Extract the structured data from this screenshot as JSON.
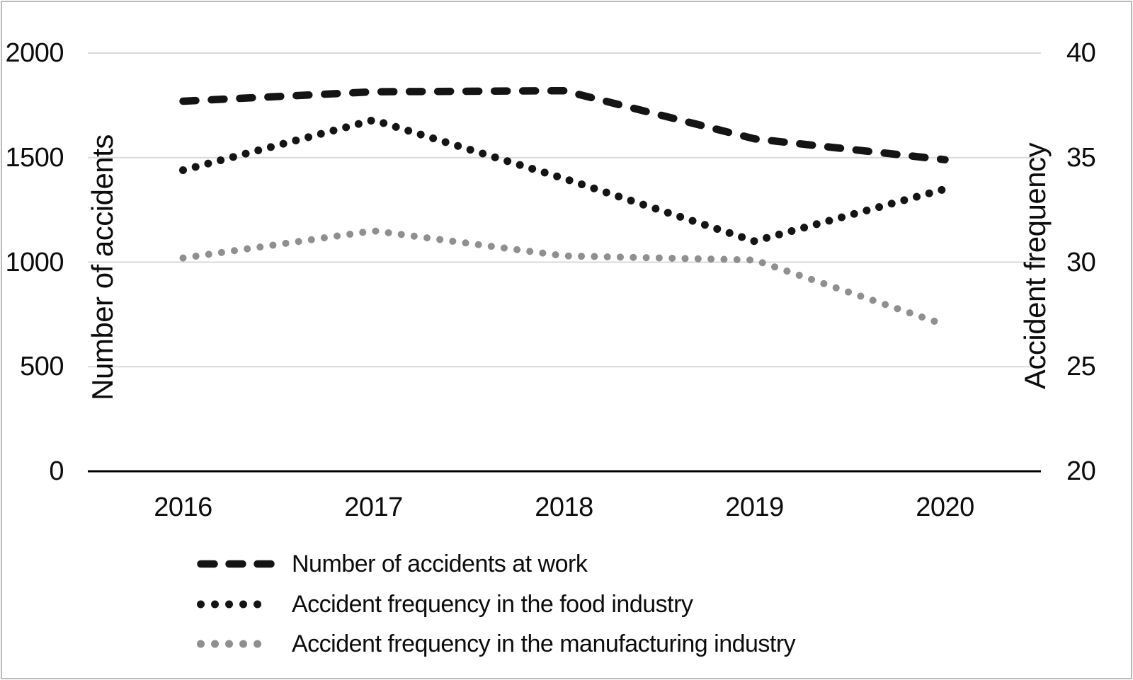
{
  "chart_data": {
    "type": "line",
    "title": "",
    "x_categories": [
      "2016",
      "2017",
      "2018",
      "2019",
      "2020"
    ],
    "left_axis": {
      "label": "Number of accidents",
      "ticks": [
        "2000",
        "1500",
        "1000",
        "500",
        "0"
      ],
      "tick_values": [
        2000,
        1500,
        1000,
        500,
        0
      ],
      "range": [
        0,
        2000
      ]
    },
    "right_axis": {
      "label": "Accident frequency",
      "ticks": [
        "40",
        "35",
        "30",
        "25",
        "20"
      ],
      "tick_values": [
        40,
        35,
        30,
        25,
        20
      ],
      "range": [
        20,
        40
      ]
    },
    "grid": true,
    "legend_position": "bottom-left",
    "series": [
      {
        "name": "Number of accidents at work",
        "axis": "left",
        "line_style": "dashed",
        "color": "#141414",
        "values": [
          1770,
          1815,
          1820,
          1590,
          1490
        ]
      },
      {
        "name": "Accident frequency in the food industry",
        "axis": "right",
        "line_style": "dotted",
        "color": "#141414",
        "values": [
          34.4,
          36.8,
          34.0,
          31.0,
          33.5
        ]
      },
      {
        "name": "Accident frequency in the manufacturing industry",
        "axis": "right",
        "line_style": "dotted",
        "color": "#8f8f8f",
        "values": [
          30.2,
          31.5,
          30.3,
          30.1,
          27.0
        ]
      }
    ],
    "colors": {
      "grid_line": "#d9d9d9",
      "axis_line": "#000000",
      "text": "#0c0c0c"
    }
  }
}
